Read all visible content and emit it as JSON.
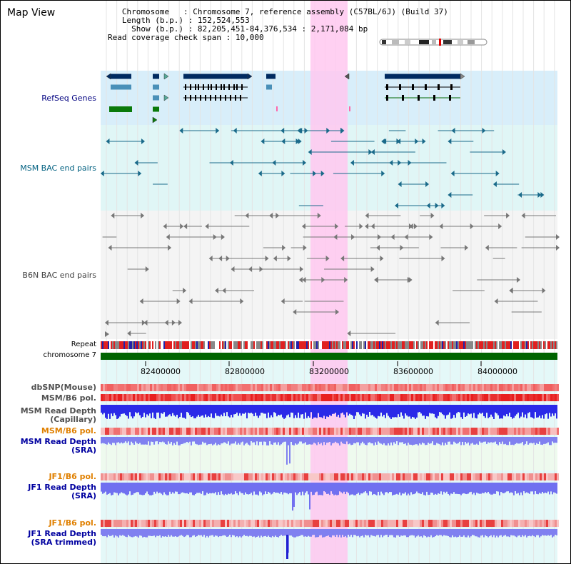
{
  "title": "Map View",
  "info": {
    "chromosome_label": "Chromosome",
    "chromosome_value": "Chromosome 7, reference assembly (C57BL/6J) (Build 37)",
    "length_label": "Length (b.p.)",
    "length_value": "152,524,553",
    "show_label": "Show (b.p.)",
    "show_value": "82,205,451-84,376,534 : 2,171,084 bp",
    "span_label": "Read coverage check span",
    "span_value": "10,000"
  },
  "tracks": {
    "refseq": "RefSeq Genes",
    "msm_bac": "MSM BAC end pairs",
    "b6n_bac": "B6N BAC end pairs",
    "repeat": "Repeat",
    "chromosome": "chromosome 7",
    "dbsnp": "dbSNP(Mouse)",
    "msm_b6_pol_1": "MSM/B6 pol.",
    "msm_depth_cap_1": "MSM Read Depth",
    "msm_depth_cap_2": "(Capillary)",
    "msm_b6_pol_2": "MSM/B6 pol.",
    "msm_depth_sra_1": "MSM Read Depth",
    "msm_depth_sra_2": "(SRA)",
    "jf1_b6_pol_1": "JF1/B6 pol.",
    "jf1_depth_sra_1": "JF1 Read Depth",
    "jf1_depth_sra_2": "(SRA)",
    "jf1_b6_pol_2": "JF1/B6 pol.",
    "jf1_depth_trim_1": "JF1 Read Depth",
    "jf1_depth_trim_2": "(SRA trimmed)"
  },
  "axis_ticks": [
    "82400000",
    "82800000",
    "83200000",
    "83600000",
    "84000000"
  ],
  "colors": {
    "refseq_label": "#000080",
    "msm_bac_label": "#006080",
    "b6n_label": "#404040",
    "orange_label": "#e08000",
    "blue_label": "#0000a0",
    "highlight": "#ffc8f0",
    "gene_dark": "#002a60",
    "chromosome_bar": "#006400"
  }
}
